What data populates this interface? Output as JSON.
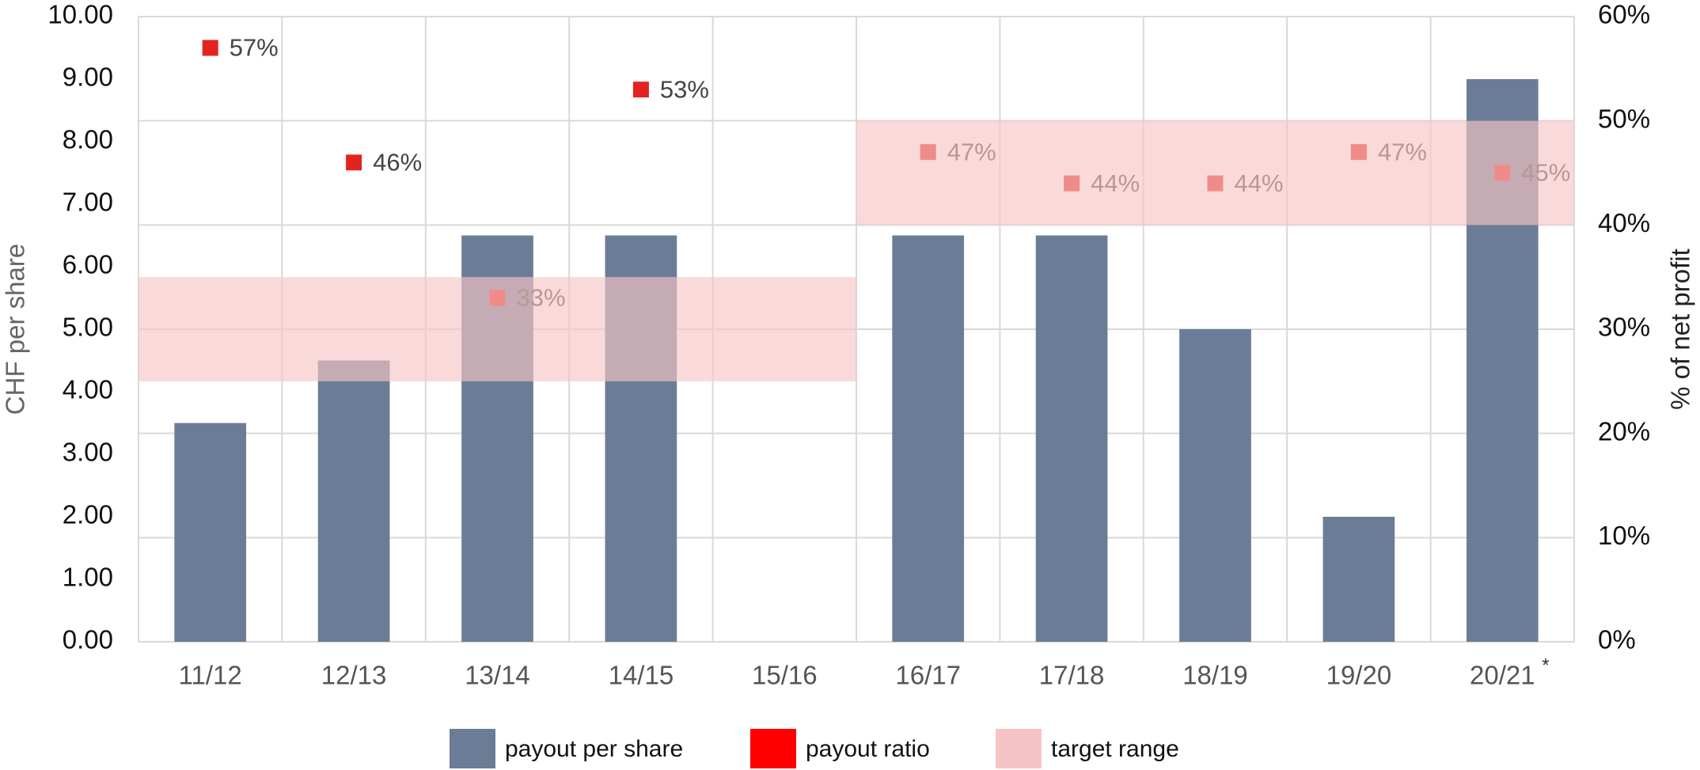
{
  "chart_data": {
    "type": "bar_scatter",
    "categories": [
      "11/12",
      "12/13",
      "13/14",
      "14/15",
      "15/16",
      "16/17",
      "17/18",
      "18/19",
      "19/20",
      "20/21"
    ],
    "annotations": [
      "*"
    ],
    "ylabel": "CHF per share",
    "y2label": "% of net profit",
    "ylim": [
      0,
      10
    ],
    "yticks": [
      {
        "value": 0,
        "label": "0.00"
      },
      {
        "value": 1,
        "label": "1.00"
      },
      {
        "value": 2,
        "label": "2.00"
      },
      {
        "value": 3,
        "label": "3.00"
      },
      {
        "value": 4,
        "label": "4.00"
      },
      {
        "value": 5,
        "label": "5.00"
      },
      {
        "value": 6,
        "label": "6.00"
      },
      {
        "value": 7,
        "label": "7.00"
      },
      {
        "value": 8,
        "label": "8.00"
      },
      {
        "value": 9,
        "label": "9.00"
      },
      {
        "value": 10,
        "label": "10.00"
      }
    ],
    "y2lim": [
      0,
      60
    ],
    "y2ticks": [
      {
        "value": 0,
        "label": "0%"
      },
      {
        "value": 10,
        "label": "10%"
      },
      {
        "value": 20,
        "label": "20%"
      },
      {
        "value": 30,
        "label": "30%"
      },
      {
        "value": 40,
        "label": "40%"
      },
      {
        "value": 50,
        "label": "50%"
      },
      {
        "value": 60,
        "label": "60%"
      }
    ],
    "grid": true,
    "legend": "bottom",
    "series": [
      {
        "name": "payout per share",
        "type": "bar",
        "color": "#6b7d96",
        "values": [
          3.5,
          4.5,
          6.5,
          6.5,
          null,
          6.5,
          6.5,
          5.0,
          2.0,
          9.0
        ]
      },
      {
        "name": "payout ratio",
        "type": "scatter",
        "axis": "y2",
        "color": "#e3231f",
        "legend_color": "#ff0000",
        "values": [
          57,
          46,
          33,
          53,
          null,
          47,
          44,
          44,
          47,
          45
        ],
        "value_labels": [
          "57%",
          "46%",
          "33%",
          "53%",
          null,
          "47%",
          "44%",
          "44%",
          "47%",
          "45%"
        ]
      },
      {
        "name": "target range",
        "type": "range",
        "axis": "y2",
        "color": "#f6c4c4",
        "ranges": [
          {
            "from": "11/12",
            "to": "15/16",
            "low": 25,
            "high": 35
          },
          {
            "from": "16/17",
            "to": "20/21",
            "low": 40,
            "high": 50
          }
        ]
      }
    ]
  }
}
